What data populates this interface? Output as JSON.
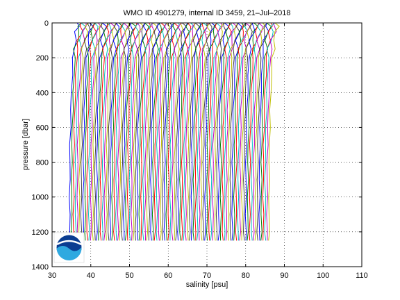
{
  "chart_data": {
    "type": "line",
    "title": "WMO ID 4901279, internal ID 3459, 21–Jul–2018",
    "xlabel": "salinity [psu]",
    "ylabel": "pressure [dbar]",
    "xlim": [
      30,
      110
    ],
    "ylim": [
      0,
      1400
    ],
    "y_reversed": true,
    "grid": true,
    "x_ticks": [
      30,
      40,
      50,
      60,
      70,
      80,
      90,
      100,
      110
    ],
    "y_ticks": [
      0,
      200,
      400,
      600,
      800,
      1000,
      1200,
      1400
    ],
    "series_description": "Many overlapping offset profiles; salinity of profile i is offset by 0.5 psu per profile",
    "profile_count": 104,
    "offset_step": 0.5,
    "base_profile": {
      "pressure": [
        0,
        20,
        50,
        100,
        150,
        200,
        300,
        400,
        500,
        600,
        700,
        800,
        900,
        1000,
        1100,
        1200,
        1250
      ],
      "salinity": [
        36.5,
        36.6,
        36.4,
        35.9,
        35.6,
        35.4,
        35.2,
        35.0,
        34.85,
        34.75,
        34.65,
        34.6,
        34.58,
        34.56,
        34.55,
        34.55,
        34.55
      ]
    },
    "colors": [
      "#0000ff",
      "#008000",
      "#ff0000",
      "#00bfbf",
      "#bf00bf",
      "#bfbf00",
      "#404040"
    ],
    "logo": "noaa-logo"
  }
}
